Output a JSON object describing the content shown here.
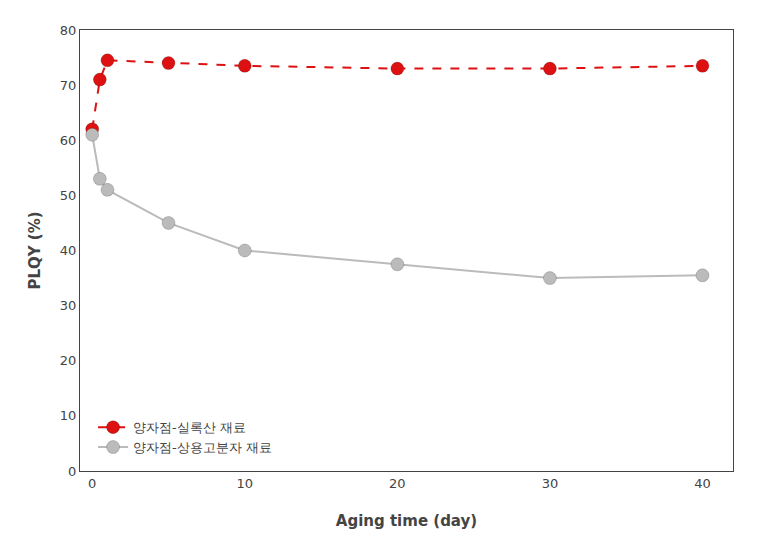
{
  "chart_data": {
    "type": "line",
    "x": [
      0,
      0.5,
      1,
      5,
      10,
      20,
      30,
      40
    ],
    "series": [
      {
        "name": "양자점-실록산 재료",
        "color": "#DD1111",
        "line_style": "dashed",
        "marker": "circle",
        "values": [
          62,
          71,
          74.5,
          74,
          73.5,
          73,
          73,
          73.5
        ]
      },
      {
        "name": "양자점-상용고분자 재료",
        "color": "#BBBBBB",
        "line_style": "solid",
        "marker": "circle",
        "values": [
          61,
          53,
          51,
          45,
          40,
          37.5,
          35,
          35.5
        ]
      }
    ],
    "xlabel": "Aging time (day)",
    "ylabel": "PLQY (%)",
    "xlim": [
      -0.8,
      42
    ],
    "xticks": [
      0,
      10,
      20,
      30,
      40
    ],
    "ylim": [
      0,
      80
    ],
    "yticks": [
      0,
      10,
      20,
      30,
      40,
      50,
      60,
      70,
      80
    ],
    "grid": false,
    "legend": "lower left"
  }
}
